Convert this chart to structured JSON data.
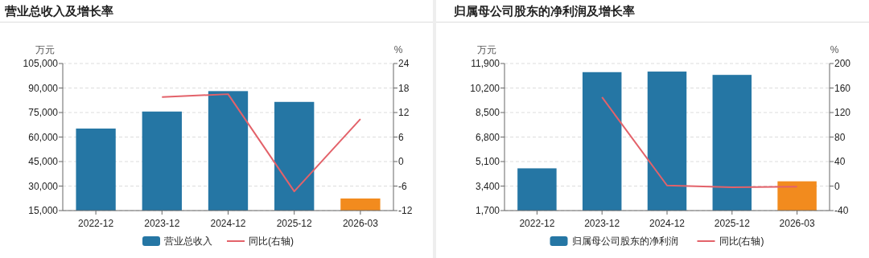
{
  "chart_data": [
    {
      "type": "bar",
      "title": "营业总收入及增长率",
      "ylabel": "万元",
      "y2label": "%",
      "categories": [
        "2022-12",
        "2023-12",
        "2024-12",
        "2025-12",
        "2026-03"
      ],
      "series": [
        {
          "name": "营业总收入",
          "color": "#2576a4",
          "colors": [
            "#2576a4",
            "#2576a4",
            "#2576a4",
            "#2576a4",
            "#f28b1e"
          ],
          "values": [
            65200,
            75600,
            88100,
            81500,
            22400
          ]
        },
        {
          "name": "同比(右轴)",
          "type": "line",
          "axis": "y2",
          "color": "#e3626a",
          "values": [
            null,
            15.8,
            16.5,
            -7.3,
            10.4
          ]
        }
      ],
      "ylim": [
        15000,
        105000
      ],
      "yticks": [
        {
          "value": 15000,
          "label": "15,000"
        },
        {
          "value": 30000,
          "label": "30,000"
        },
        {
          "value": 45000,
          "label": "45,000"
        },
        {
          "value": 60000,
          "label": "60,000"
        },
        {
          "value": 75000,
          "label": "75,000"
        },
        {
          "value": 90000,
          "label": "90,000"
        },
        {
          "value": 105000,
          "label": "105,000"
        }
      ],
      "y2lim": [
        -12,
        24
      ],
      "y2ticks": [
        -12,
        -6,
        0,
        6,
        12,
        18,
        24
      ],
      "grid": "y",
      "legend": "bottom",
      "marker": "none"
    },
    {
      "type": "bar",
      "title": "归属母公司股东的净利润及增长率",
      "ylabel": "万元",
      "y2label": "%",
      "categories": [
        "2022-12",
        "2023-12",
        "2024-12",
        "2025-12",
        "2026-03"
      ],
      "series": [
        {
          "name": "归属母公司股东的净利润",
          "color": "#2576a4",
          "colors": [
            "#2576a4",
            "#2576a4",
            "#2576a4",
            "#2576a4",
            "#f28b1e"
          ],
          "values": [
            4630,
            11300,
            11340,
            11110,
            3730
          ]
        },
        {
          "name": "同比(右轴)",
          "type": "line",
          "axis": "y2",
          "color": "#e3626a",
          "values": [
            null,
            145,
            1,
            -2,
            -1
          ]
        }
      ],
      "ylim": [
        1700,
        11900
      ],
      "yticks": [
        {
          "value": 1700,
          "label": "1,700"
        },
        {
          "value": 3400,
          "label": "3,400"
        },
        {
          "value": 5100,
          "label": "5,100"
        },
        {
          "value": 6800,
          "label": "6,800"
        },
        {
          "value": 8500,
          "label": "8,500"
        },
        {
          "value": 10200,
          "label": "10,200"
        },
        {
          "value": 11900,
          "label": "11,900"
        }
      ],
      "y2lim": [
        -40,
        200
      ],
      "y2ticks": [
        -40,
        0,
        40,
        80,
        120,
        160,
        200
      ],
      "grid": "y",
      "legend": "bottom",
      "marker": "none"
    }
  ]
}
